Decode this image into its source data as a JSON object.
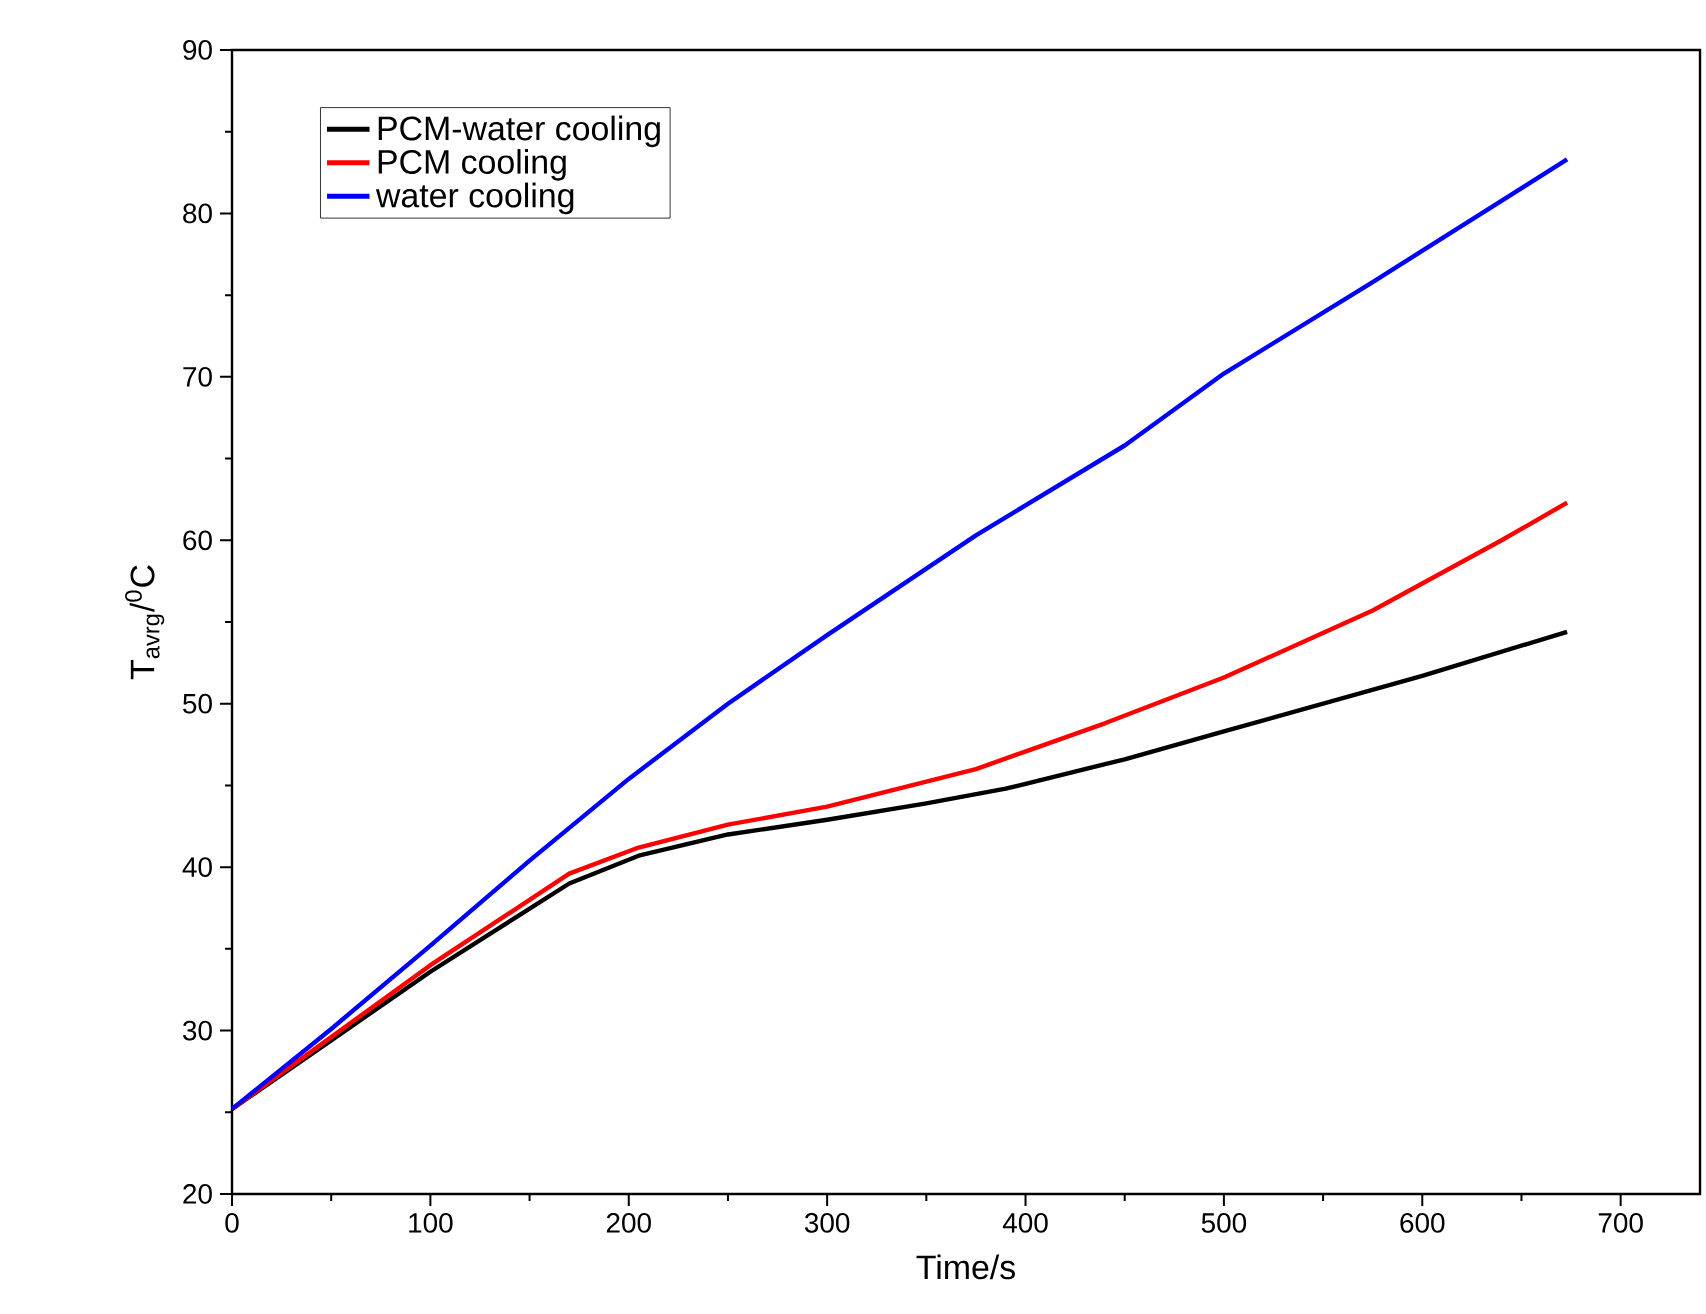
{
  "chart_data": {
    "type": "line",
    "xlabel": "Time/s",
    "ylabel": "T$_{avrg}$/$^{0}$C",
    "xlim": [
      0,
      740
    ],
    "ylim": [
      20,
      90
    ],
    "xticks": [
      0,
      100,
      200,
      300,
      400,
      500,
      600,
      700
    ],
    "yticks": [
      20,
      30,
      40,
      50,
      60,
      70,
      80,
      90
    ],
    "grid": false,
    "legend": "top left",
    "marker": "none",
    "line_style": "solid",
    "series": [
      {
        "name": "PCM-water cooling",
        "color": "#000000",
        "x": [
          0,
          50,
          100,
          170,
          205,
          250,
          300,
          350,
          390,
          450,
          500,
          600,
          673
        ],
        "values": [
          25.2,
          29.4,
          33.6,
          39,
          40.7,
          42,
          42.9,
          43.9,
          44.8,
          46.6,
          48.3,
          51.7,
          54.4
        ]
      },
      {
        "name": "PCM cooling",
        "color": "#ff0000",
        "x": [
          0,
          50,
          100,
          170,
          205,
          250,
          300,
          375,
          440,
          500,
          575,
          640,
          673
        ],
        "values": [
          25.2,
          29.6,
          34,
          39.6,
          41.2,
          42.6,
          43.7,
          46,
          48.8,
          51.6,
          55.7,
          60,
          62.3
        ]
      },
      {
        "name": "water cooling",
        "color": "#0000ff",
        "x": [
          0,
          50,
          100,
          150,
          200,
          250,
          300,
          375,
          450,
          500,
          575,
          673
        ],
        "values": [
          25.2,
          30.1,
          35.2,
          40.4,
          45.4,
          50,
          54.2,
          60.3,
          65.8,
          70.2,
          75.8,
          83.3
        ]
      }
    ]
  }
}
